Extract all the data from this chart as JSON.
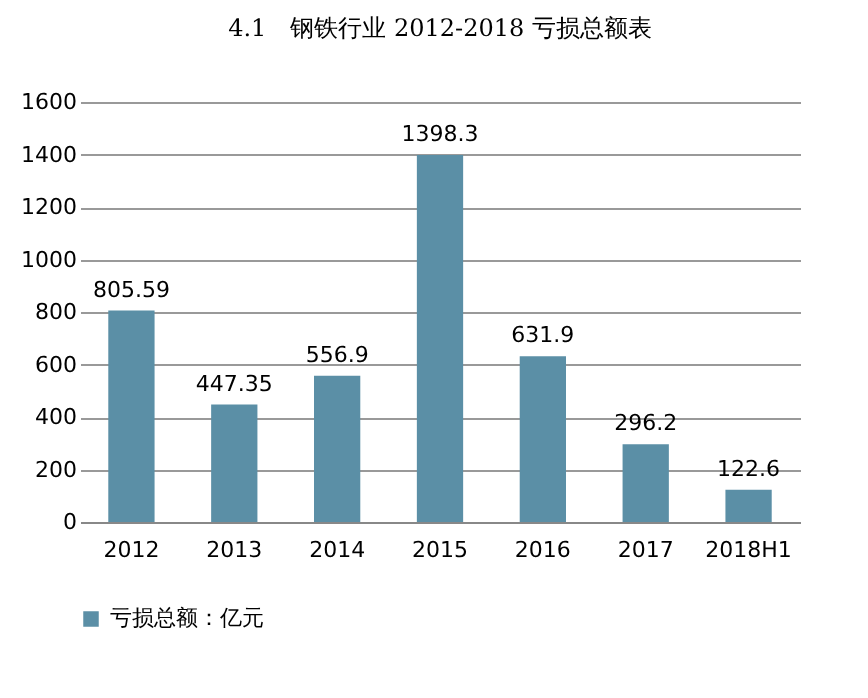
{
  "chart_data": {
    "type": "bar",
    "title": "4.1　钢铁行业 2012-2018 亏损总额表",
    "categories": [
      "2012",
      "2013",
      "2014",
      "2015",
      "2016",
      "2017",
      "2018H1"
    ],
    "series": [
      {
        "name": "亏损总额：亿元",
        "color": "#5b8fa6",
        "values": [
          805.59,
          447.35,
          556.9,
          1398.3,
          631.9,
          296.2,
          122.6
        ]
      }
    ],
    "ylim": [
      0,
      1600
    ],
    "yticks": [
      0,
      200,
      400,
      600,
      800,
      1000,
      1200,
      1400,
      1600
    ],
    "grid": "y",
    "legend": "bottom",
    "data_labels": true
  }
}
